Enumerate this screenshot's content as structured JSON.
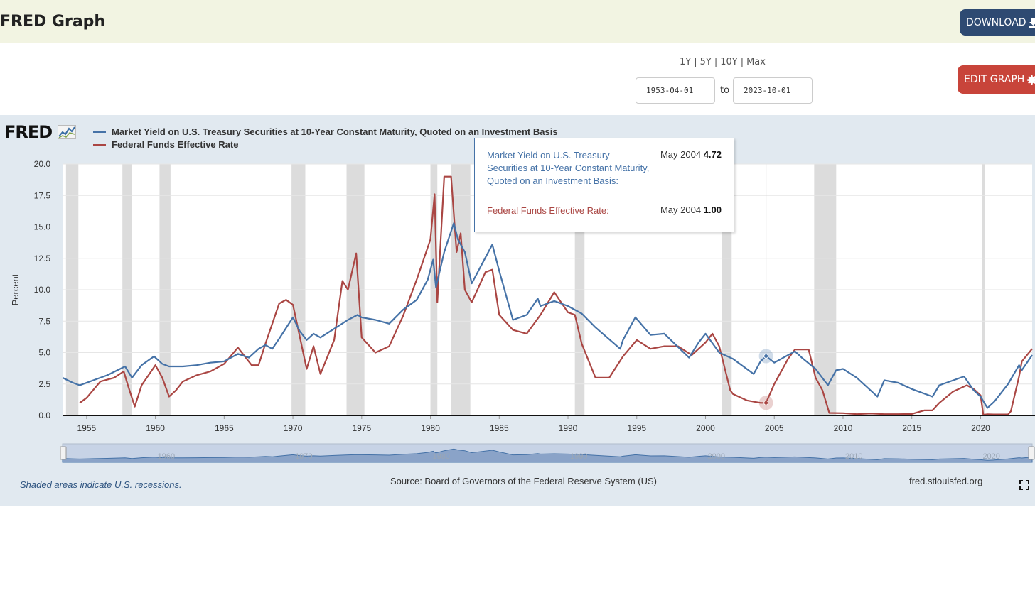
{
  "header": {
    "title": "FRED Graph",
    "download_label": "DOWNLOAD",
    "download_icon": "download-icon"
  },
  "range_links": [
    "1Y",
    "5Y",
    "10Y",
    "Max"
  ],
  "date_range": {
    "start": "1953-04-01",
    "end": "2023-10-01",
    "to_label": "to"
  },
  "edit_graph_label": "EDIT GRAPH",
  "edit_icon": "gear-icon",
  "logo_text": "FRED",
  "tooltip": {
    "series1_name": "Market Yield on U.S. Treasury Securities at 10-Year Constant Maturity, Quoted on an Investment Basis:",
    "series1_date": "May 2004",
    "series1_value": "4.72",
    "series2_name": "Federal Funds Effective Rate:",
    "series2_date": "May 2004",
    "series2_value": "1.00"
  },
  "footer": {
    "note": "Shaded areas indicate U.S. recessions.",
    "source": "Source: Board of Governors of the Federal Reserve System (US)",
    "site": "fred.stlouisfed.org"
  },
  "colors": {
    "series1": "#4572a7",
    "series2": "#aa4643",
    "recession": "#dcdcdc",
    "panel": "#e1e9f0"
  },
  "chart_data": {
    "type": "line",
    "ylabel": "Percent",
    "ylim": [
      0,
      20
    ],
    "xlim": [
      1953.25,
      2023.75
    ],
    "yticks": [
      "0.0",
      "2.5",
      "5.0",
      "7.5",
      "10.0",
      "12.5",
      "15.0",
      "17.5",
      "20.0"
    ],
    "xticks": [
      "1955",
      "1960",
      "1965",
      "1970",
      "1975",
      "1980",
      "1985",
      "1990",
      "1995",
      "2000",
      "2005",
      "2010",
      "2015",
      "2020"
    ],
    "navigator_labels": [
      "1960",
      "1970",
      "1980",
      "1990",
      "2000",
      "2010",
      "2020"
    ],
    "recessions": [
      [
        1953.5,
        1954.4
      ],
      [
        1957.6,
        1958.3
      ],
      [
        1960.3,
        1961.1
      ],
      [
        1969.9,
        1970.9
      ],
      [
        1973.9,
        1975.2
      ],
      [
        1980.0,
        1980.5
      ],
      [
        1981.5,
        1982.9
      ],
      [
        1990.5,
        1991.2
      ],
      [
        2001.2,
        2001.9
      ],
      [
        2007.9,
        2009.5
      ],
      [
        2020.1,
        2020.3
      ]
    ],
    "grid": true,
    "legend_position": "top-left",
    "series": [
      {
        "name": "Market Yield on U.S. Treasury Securities at 10-Year Constant Maturity, Quoted on an Investment Basis",
        "x": [
          1953.25,
          1954.0,
          1954.5,
          1955.5,
          1956.5,
          1957.8,
          1958.3,
          1959.0,
          1959.9,
          1960.5,
          1961.0,
          1962.0,
          1963.0,
          1964.0,
          1965.0,
          1966.0,
          1966.8,
          1967.5,
          1968.0,
          1968.5,
          1969.0,
          1970.0,
          1970.5,
          1971.0,
          1971.5,
          1972.0,
          1973.0,
          1974.0,
          1974.7,
          1975.0,
          1976.0,
          1977.0,
          1978.0,
          1979.0,
          1979.8,
          1980.2,
          1980.4,
          1981.0,
          1981.7,
          1982.0,
          1982.5,
          1983.0,
          1984.5,
          1985.0,
          1986.0,
          1987.0,
          1987.8,
          1988.0,
          1989.0,
          1990.0,
          1991.0,
          1992.0,
          1993.8,
          1994.0,
          1994.9,
          1996.0,
          1997.0,
          1998.8,
          1999.5,
          2000.0,
          2001.0,
          2002.0,
          2003.5,
          2004.0,
          2004.4,
          2005.0,
          2006.5,
          2007.0,
          2008.0,
          2008.9,
          2009.5,
          2010.0,
          2011.0,
          2012.5,
          2013.0,
          2014.0,
          2015.0,
          2016.5,
          2017.0,
          2018.8,
          2019.5,
          2020.0,
          2020.5,
          2021.0,
          2022.0,
          2022.8,
          2023.0,
          2023.75
        ],
        "y": [
          3.0,
          2.6,
          2.4,
          2.8,
          3.2,
          3.9,
          3.0,
          4.0,
          4.7,
          4.1,
          3.9,
          3.9,
          4.0,
          4.2,
          4.3,
          4.9,
          4.6,
          5.3,
          5.6,
          5.3,
          6.1,
          7.8,
          6.7,
          6.0,
          6.5,
          6.2,
          6.9,
          7.6,
          8.0,
          7.8,
          7.6,
          7.3,
          8.4,
          9.2,
          10.8,
          12.4,
          10.2,
          13.0,
          15.3,
          14.0,
          13.0,
          10.5,
          13.6,
          11.5,
          7.6,
          8.0,
          9.3,
          8.7,
          9.1,
          8.7,
          8.1,
          7.0,
          5.3,
          6.0,
          7.8,
          6.4,
          6.5,
          4.6,
          5.8,
          6.5,
          5.0,
          4.5,
          3.3,
          4.3,
          4.72,
          4.2,
          5.1,
          4.6,
          3.7,
          2.4,
          3.6,
          3.7,
          3.0,
          1.5,
          2.8,
          2.6,
          2.1,
          1.5,
          2.4,
          3.1,
          2.0,
          1.5,
          0.6,
          1.1,
          2.5,
          4.0,
          3.6,
          4.8
        ]
      },
      {
        "name": "Federal Funds Effective Rate",
        "x": [
          1954.5,
          1955.0,
          1956.0,
          1957.0,
          1957.7,
          1958.0,
          1958.5,
          1959.0,
          1960.0,
          1960.5,
          1961.0,
          1961.5,
          1962.0,
          1963.0,
          1964.0,
          1965.0,
          1966.0,
          1967.0,
          1967.5,
          1968.0,
          1969.0,
          1969.5,
          1970.0,
          1971.0,
          1971.5,
          1972.0,
          1973.0,
          1973.6,
          1974.0,
          1974.6,
          1975.0,
          1976.0,
          1977.0,
          1978.0,
          1979.0,
          1980.0,
          1980.3,
          1980.5,
          1980.8,
          1981.0,
          1981.5,
          1981.9,
          1982.2,
          1982.5,
          1983.0,
          1984.0,
          1984.5,
          1985.0,
          1986.0,
          1987.0,
          1988.0,
          1989.0,
          1989.5,
          1990.0,
          1990.5,
          1991.0,
          1992.0,
          1993.0,
          1994.0,
          1995.0,
          1996.0,
          1997.0,
          1998.0,
          1999.0,
          2000.0,
          2000.5,
          2001.0,
          2001.8,
          2002.0,
          2003.0,
          2004.0,
          2004.4,
          2005.0,
          2006.0,
          2006.5,
          2007.0,
          2007.5,
          2008.0,
          2008.5,
          2009.0,
          2010.0,
          2011.0,
          2012.0,
          2013.0,
          2014.0,
          2015.0,
          2015.9,
          2016.5,
          2017.0,
          2018.0,
          2019.0,
          2019.5,
          2020.0,
          2020.2,
          2020.5,
          2021.0,
          2022.0,
          2022.2,
          2022.8,
          2023.0,
          2023.6,
          2023.75
        ],
        "y": [
          1.0,
          1.4,
          2.7,
          3.0,
          3.5,
          2.4,
          0.7,
          2.4,
          4.0,
          3.0,
          1.5,
          2.0,
          2.7,
          3.2,
          3.5,
          4.1,
          5.4,
          4.0,
          4.0,
          5.7,
          8.9,
          9.2,
          8.8,
          3.7,
          5.5,
          3.3,
          6.0,
          10.7,
          10.0,
          12.9,
          6.2,
          5.0,
          5.5,
          7.9,
          10.8,
          14.0,
          17.6,
          9.0,
          15.0,
          19.0,
          19.0,
          13.0,
          14.5,
          10.0,
          9.0,
          11.4,
          11.6,
          8.0,
          6.8,
          6.5,
          8.0,
          9.8,
          9.0,
          8.2,
          8.0,
          5.7,
          3.0,
          3.0,
          4.7,
          6.0,
          5.3,
          5.5,
          5.5,
          4.8,
          5.8,
          6.5,
          5.5,
          2.0,
          1.7,
          1.2,
          1.0,
          1.0,
          2.5,
          4.5,
          5.25,
          5.25,
          5.25,
          3.0,
          2.0,
          0.2,
          0.18,
          0.1,
          0.15,
          0.1,
          0.1,
          0.12,
          0.4,
          0.4,
          1.0,
          1.9,
          2.4,
          2.1,
          1.6,
          0.05,
          0.09,
          0.08,
          0.08,
          0.33,
          3.1,
          4.3,
          5.1,
          5.3
        ]
      }
    ]
  }
}
